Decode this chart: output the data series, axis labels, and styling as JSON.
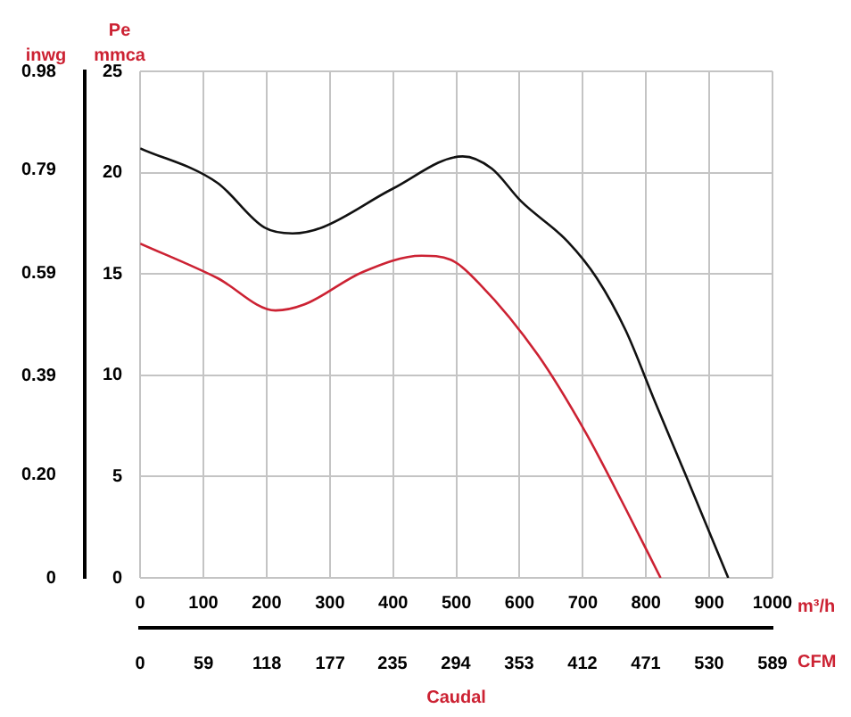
{
  "chart_data": {
    "type": "line",
    "xlabel": "m³/h",
    "x2label": "CFM",
    "ylabel": "mmca",
    "y2label": "inwg",
    "annotations": [
      "Pe",
      "Caudal"
    ],
    "xlim": [
      0,
      1000
    ],
    "xticks": [
      0,
      100,
      200,
      300,
      400,
      500,
      600,
      700,
      800,
      900,
      1000
    ],
    "x2lim": [
      0,
      589
    ],
    "x2ticks": [
      0,
      59,
      118,
      177,
      235,
      294,
      353,
      412,
      471,
      530,
      589
    ],
    "ylim": [
      0,
      25
    ],
    "yticks": [
      0,
      5,
      10,
      15,
      20,
      25
    ],
    "y2lim": [
      0,
      0.98
    ],
    "y2ticks": [
      0,
      {
        "value": 0.2,
        "label": "0.20"
      },
      0.39,
      0.59,
      0.79,
      0.98
    ],
    "grid": true,
    "marker": "none",
    "line_style": "solid",
    "series": [
      {
        "color": "#111111",
        "x": [
          0,
          122,
          196,
          241,
          288,
          399,
          510,
          556,
          602,
          676,
          722,
          768,
          814,
          861,
          930
        ],
        "values": [
          21.2,
          19.5,
          17.3,
          17.0,
          17.3,
          19.2,
          20.8,
          20.2,
          18.6,
          16.6,
          14.8,
          12.2,
          8.7,
          5.2,
          0
        ]
      },
      {
        "color": "#cc2233",
        "x": [
          0,
          122,
          214,
          260,
          352,
          445,
          491,
          537,
          629,
          704,
          768,
          823
        ],
        "values": [
          16.5,
          14.8,
          13.2,
          13.5,
          15.1,
          15.9,
          15.7,
          14.5,
          11.0,
          7.2,
          3.4,
          0
        ]
      }
    ]
  }
}
